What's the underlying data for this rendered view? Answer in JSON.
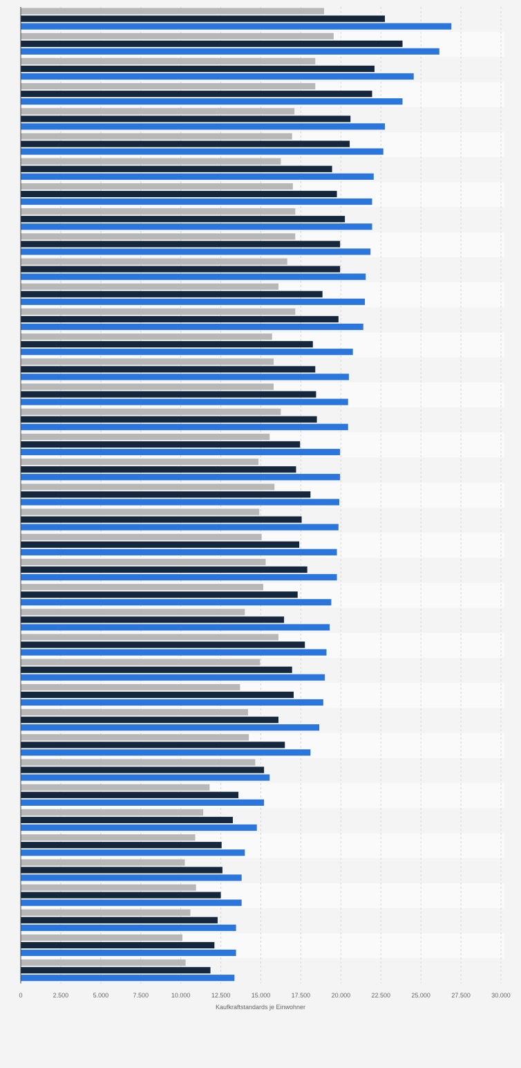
{
  "chart_data": {
    "type": "bar",
    "orientation": "horizontal",
    "xlabel": "Kaufkraftstandards je Einwohner",
    "xlim": [
      0,
      30000
    ],
    "ticks": [
      {
        "value": 0,
        "label": "0"
      },
      {
        "value": 2500,
        "label": "2.500"
      },
      {
        "value": 5000,
        "label": "5.000"
      },
      {
        "value": 7500,
        "label": "7.500"
      },
      {
        "value": 10000,
        "label": "10.000"
      },
      {
        "value": 12500,
        "label": "12.500"
      },
      {
        "value": 15000,
        "label": "15.000"
      },
      {
        "value": 17500,
        "label": "17.500"
      },
      {
        "value": 20000,
        "label": "20.000"
      },
      {
        "value": 22500,
        "label": "22.500"
      },
      {
        "value": 25000,
        "label": "25.000"
      },
      {
        "value": 27500,
        "label": "27.500"
      },
      {
        "value": 30000,
        "label": "30.000"
      }
    ],
    "grid": true,
    "legend": "none",
    "series": [
      {
        "color": "#b7b7b7",
        "values": [
          18950,
          19550,
          18400,
          18400,
          17100,
          16950,
          16250,
          17000,
          17150,
          17150,
          16650,
          16100,
          17150,
          15700,
          15800,
          15800,
          16250,
          15550,
          14850,
          15850,
          14900,
          15050,
          15300,
          15150,
          14000,
          16100,
          14950,
          13700,
          14200,
          14250,
          14650,
          11800,
          11400,
          10900,
          10250,
          10950,
          10600,
          10100,
          10300
        ]
      },
      {
        "color": "#15273d",
        "values": [
          22750,
          23850,
          22100,
          21950,
          20600,
          20550,
          19450,
          19750,
          20250,
          19950,
          19950,
          18850,
          19850,
          18250,
          18400,
          18450,
          18500,
          17450,
          17200,
          18100,
          17550,
          17400,
          17900,
          17300,
          16450,
          17750,
          16950,
          17050,
          16100,
          16500,
          15200,
          13600,
          13250,
          12550,
          12600,
          12500,
          12300,
          12100,
          11850
        ]
      },
      {
        "color": "#2a76dc",
        "values": [
          26900,
          26150,
          24550,
          23850,
          22750,
          22650,
          22050,
          21950,
          21950,
          21850,
          21550,
          21500,
          21400,
          20750,
          20500,
          20450,
          20450,
          19950,
          19950,
          19900,
          19850,
          19750,
          19750,
          19400,
          19300,
          19100,
          19000,
          18900,
          18650,
          18100,
          15550,
          15200,
          14750,
          14000,
          13800,
          13800,
          13450,
          13450,
          13350
        ]
      }
    ]
  }
}
